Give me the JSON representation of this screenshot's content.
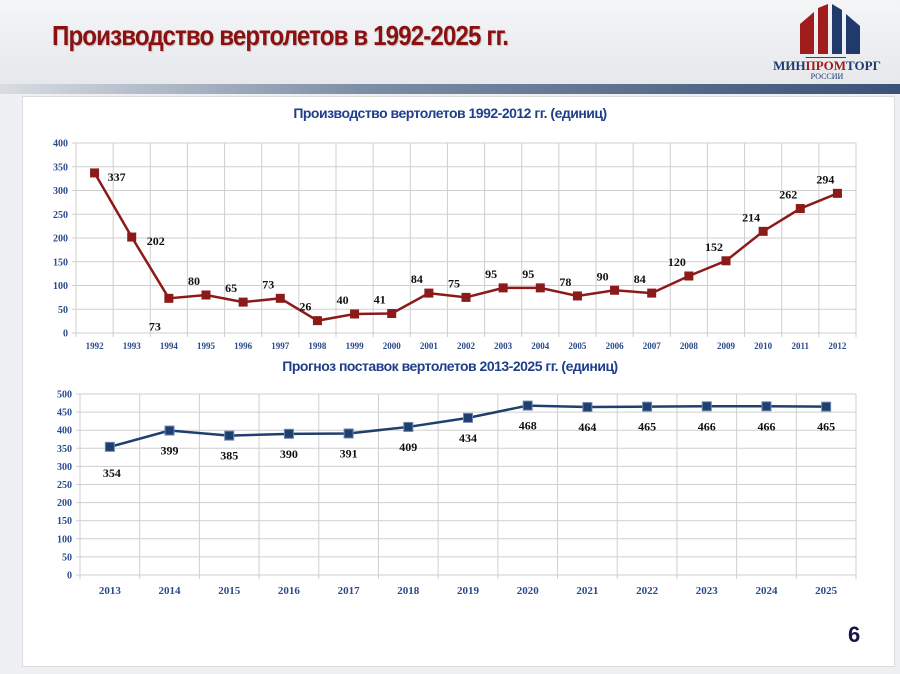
{
  "header": {
    "title": "Производство вертолетов в 1992-2025 гг."
  },
  "logo": {
    "name_part1": "МИН",
    "name_part2": "ПРОМ",
    "name_part3": "ТОРГ",
    "subtitle": "РОССИИ"
  },
  "page_number": "6",
  "colors": {
    "series1": "#8b1a1a",
    "series2": "#1f3f6e",
    "title": "#8b1111",
    "axis_text": "#2a4a8a"
  },
  "chart_data": [
    {
      "type": "line",
      "title": "Производство вертолетов 1992-2012 гг. (единиц)",
      "categories": [
        "1992",
        "1993",
        "1994",
        "1995",
        "1996",
        "1997",
        "1998",
        "1999",
        "2000",
        "2001",
        "2002",
        "2003",
        "2004",
        "2005",
        "2006",
        "2007",
        "2008",
        "2009",
        "2010",
        "2011",
        "2012"
      ],
      "values": [
        337,
        202,
        73,
        80,
        65,
        73,
        26,
        40,
        41,
        84,
        75,
        95,
        95,
        78,
        90,
        84,
        120,
        152,
        214,
        262,
        294
      ],
      "ylim": [
        0,
        400
      ],
      "yticks": [
        0,
        50,
        100,
        150,
        200,
        250,
        300,
        350,
        400
      ],
      "grid": true,
      "marker": "square"
    },
    {
      "type": "line",
      "title": "Прогноз поставок  вертолетов 2013-2025 гг. (единиц)",
      "categories": [
        "2013",
        "2014",
        "2015",
        "2016",
        "2017",
        "2018",
        "2019",
        "2020",
        "2021",
        "2022",
        "2023",
        "2024",
        "2025"
      ],
      "values": [
        354,
        399,
        385,
        390,
        391,
        409,
        434,
        468,
        464,
        465,
        466,
        466,
        465
      ],
      "ylim": [
        0,
        500
      ],
      "yticks": [
        0,
        50,
        100,
        150,
        200,
        250,
        300,
        350,
        400,
        450,
        500
      ],
      "grid": true,
      "marker": "square"
    }
  ]
}
